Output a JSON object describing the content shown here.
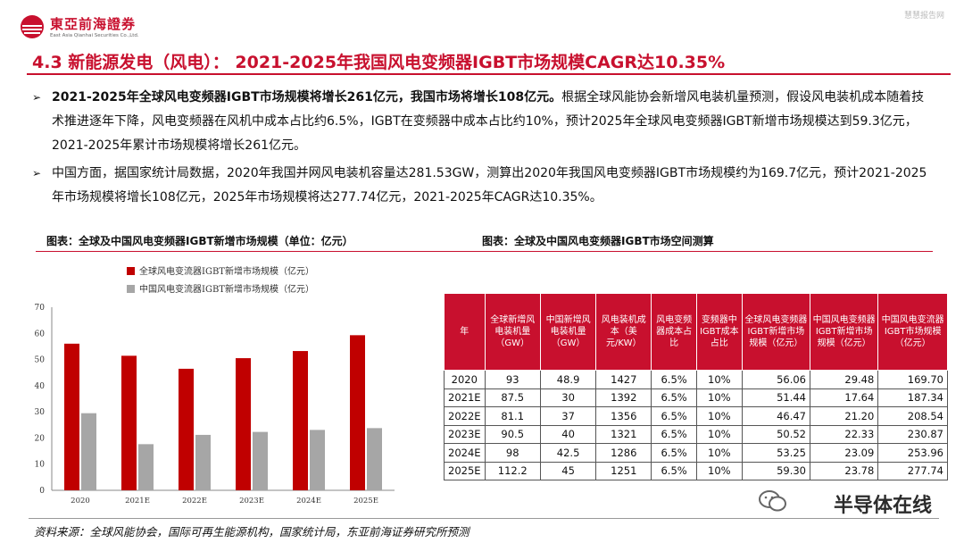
{
  "header": {
    "logo_name": "東亞前海證券",
    "logo_sub": "East Asia Qianhai Securities Co.,Ltd.",
    "top_right": "慧慧报告网"
  },
  "title": "4.3 新能源发电（风电）： 2021-2025年我国风电变频器IGBT市场规模CAGR达10.35%",
  "bullets": [
    {
      "bold": "2021-2025年全球风电变频器IGBT市场规模将增长261亿元，我国市场将增长108亿元。",
      "text": "根据全球风能协会新增风电装机量预测，假设风电装机成本随着技术推进逐年下降，风电变频器在风机中成本占比约6.5%，IGBT在变频器中成本占比约10%，预计2025年全球风电变频器IGBT新增市场规模达到59.3亿元，2021-2025年累计市场规模将增长261亿元。"
    },
    {
      "bold": "",
      "text": "中国方面，据国家统计局数据，2020年我国并网风电装机容量达281.53GW，测算出2020年我国风电变频器IGBT市场规模约为169.7亿元，预计2021-2025年市场规模将增长108亿元，2025年市场规模将达277.74亿元，2021-2025年CAGR达10.35%。"
    }
  ],
  "captions": {
    "left": "图表：全球及中国风电变频器IGBT新增市场规模（单位：亿元）",
    "right": "图表：全球及中国风电变频器IGBT市场空间测算"
  },
  "chart_data": {
    "type": "bar",
    "categories": [
      "2020",
      "2021E",
      "2022E",
      "2023E",
      "2024E",
      "2025E"
    ],
    "series": [
      {
        "name": "全球风电变流器IGBT新增市场规模（亿元）",
        "values": [
          56.06,
          51.44,
          46.47,
          50.52,
          53.25,
          59.3
        ],
        "color": "#c00000"
      },
      {
        "name": "中国风电变流器IGBT新增市场规模（亿元）",
        "values": [
          29.48,
          17.64,
          21.2,
          22.33,
          23.09,
          23.78
        ],
        "color": "#a6a6a6"
      }
    ],
    "yticks": [
      "0",
      "10",
      "20",
      "30",
      "40",
      "50",
      "60",
      "70"
    ],
    "ylim": [
      0,
      70
    ],
    "legend": "top-left"
  },
  "table": {
    "headers": [
      "年",
      "全球新增风电装机量（GW）",
      "中国新增风电装机量（GW）",
      "风电装机成本（美元/KW）",
      "风电变频器成本占比",
      "变频器中IGBT成本占比",
      "全球风电变频器IGBT新增市场规模（亿元）",
      "中国风电变频器IGBT新增市场规模（亿元）",
      "中国风电变流器IGBT市场规模（亿元）"
    ],
    "rows": [
      [
        "2020",
        "93",
        "48.9",
        "1427",
        "6.5%",
        "10%",
        "56.06",
        "29.48",
        "169.70"
      ],
      [
        "2021E",
        "87.5",
        "30",
        "1392",
        "6.5%",
        "10%",
        "51.44",
        "17.64",
        "187.34"
      ],
      [
        "2022E",
        "81.1",
        "37",
        "1356",
        "6.5%",
        "10%",
        "46.47",
        "21.20",
        "208.54"
      ],
      [
        "2023E",
        "90.5",
        "40",
        "1321",
        "6.5%",
        "10%",
        "50.52",
        "22.33",
        "230.87"
      ],
      [
        "2024E",
        "98",
        "42.5",
        "1286",
        "6.5%",
        "10%",
        "53.25",
        "23.09",
        "253.96"
      ],
      [
        "2025E",
        "112.2",
        "45",
        "1251",
        "6.5%",
        "10%",
        "59.30",
        "23.78",
        "277.74"
      ]
    ]
  },
  "source": "资料来源：全球风能协会，国际可再生能源机构，国家统计局，东亚前海证券研究所预测",
  "watermark": "半导体在线",
  "colors": {
    "brand_red": "#c8102e"
  }
}
